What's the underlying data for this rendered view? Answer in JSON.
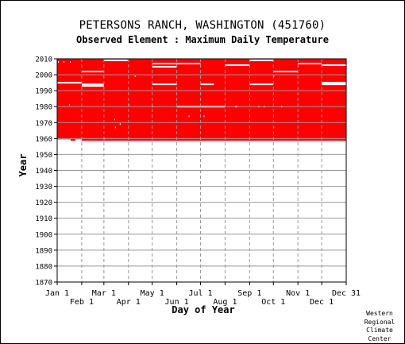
{
  "chart_data": {
    "type": "scatter",
    "title": "PETERSONS RANCH, WASHINGTON   (451760)",
    "subtitle": "Observed Element : Maximum Daily Temperature",
    "xlabel": "Day of Year",
    "ylabel": "Year",
    "xlim": [
      1,
      366
    ],
    "ylim": [
      1870,
      2010
    ],
    "grid": true,
    "y_ticks": [
      1870,
      1880,
      1890,
      1900,
      1910,
      1920,
      1930,
      1940,
      1950,
      1960,
      1970,
      1980,
      1990,
      2000,
      2010
    ],
    "x_ticks_upper": [
      {
        "label": "Jan 1",
        "day": 1
      },
      {
        "label": "Mar 1",
        "day": 60
      },
      {
        "label": "May 1",
        "day": 121
      },
      {
        "label": "Jul 1",
        "day": 182
      },
      {
        "label": "Sep 1",
        "day": 244
      },
      {
        "label": "Nov 1",
        "day": 305
      },
      {
        "label": "Dec 31",
        "day": 366
      }
    ],
    "x_ticks_lower": [
      {
        "label": "Feb 1",
        "day": 32
      },
      {
        "label": "Apr 1",
        "day": 91
      },
      {
        "label": "Jun 1",
        "day": 152
      },
      {
        "label": "Aug 1",
        "day": 213
      },
      {
        "label": "Oct 1",
        "day": 274
      },
      {
        "label": "Dec 1",
        "day": 335
      }
    ],
    "series": [
      {
        "color": "#ff0000",
        "coverage": {
          "start_year": 1958.5,
          "end_year": 2010,
          "start_day": 1,
          "end_day": 366,
          "first_year_start_day": 18
        },
        "missing_segments": [
          {
            "year": 2009,
            "day_start": 60,
            "day_end": 90
          },
          {
            "year": 2009,
            "day_start": 244,
            "day_end": 274
          },
          {
            "year": 2008,
            "day_start": 2,
            "day_end": 3
          },
          {
            "year": 2008,
            "day_start": 9,
            "day_end": 10
          },
          {
            "year": 2008,
            "day_start": 17,
            "day_end": 18
          },
          {
            "year": 2007,
            "day_start": 121,
            "day_end": 182
          },
          {
            "year": 2007,
            "day_start": 305,
            "day_end": 335
          },
          {
            "year": 2006,
            "day_start": 213,
            "day_end": 244
          },
          {
            "year": 2006,
            "day_start": 335,
            "day_end": 366
          },
          {
            "year": 2005,
            "day_start": 121,
            "day_end": 152
          },
          {
            "year": 2002,
            "day_start": 32,
            "day_end": 60
          },
          {
            "year": 2002,
            "day_start": 274,
            "day_end": 305
          },
          {
            "year": 1999,
            "day_start": 99,
            "day_end": 100
          },
          {
            "year": 1999,
            "day_start": 274,
            "day_end": 275
          },
          {
            "year": 1995,
            "day_start": 1,
            "day_end": 32
          },
          {
            "year": 1995,
            "day_start": 335,
            "day_end": 366
          },
          {
            "year": 1994,
            "day_start": 32,
            "day_end": 60
          },
          {
            "year": 1994,
            "day_start": 121,
            "day_end": 152
          },
          {
            "year": 1994,
            "day_start": 182,
            "day_end": 199
          },
          {
            "year": 1994,
            "day_start": 244,
            "day_end": 274
          },
          {
            "year": 1994,
            "day_start": 335,
            "day_end": 366
          },
          {
            "year": 1993,
            "day_start": 32,
            "day_end": 60
          },
          {
            "year": 1981,
            "day_start": 91,
            "day_end": 92
          },
          {
            "year": 1981,
            "day_start": 16,
            "day_end": 17
          },
          {
            "year": 1980,
            "day_start": 121,
            "day_end": 122
          },
          {
            "year": 1980,
            "day_start": 152,
            "day_end": 213
          },
          {
            "year": 1980,
            "day_start": 226,
            "day_end": 228
          },
          {
            "year": 1980,
            "day_start": 255,
            "day_end": 256
          },
          {
            "year": 1980,
            "day_start": 262,
            "day_end": 263
          },
          {
            "year": 1980,
            "day_start": 284,
            "day_end": 285
          },
          {
            "year": 1974,
            "day_start": 167,
            "day_end": 168
          },
          {
            "year": 1974,
            "day_start": 186,
            "day_end": 187
          },
          {
            "year": 1972,
            "day_start": 73,
            "day_end": 74
          },
          {
            "year": 1969,
            "day_start": 80,
            "day_end": 81
          },
          {
            "year": 1967,
            "day_start": 74,
            "day_end": 75
          },
          {
            "year": 1967,
            "day_start": 274,
            "day_end": 275
          },
          {
            "year": 1960,
            "day_start": 60,
            "day_end": 61
          },
          {
            "year": 1959,
            "day_start": 1,
            "day_end": 18
          },
          {
            "year": 1959,
            "day_start": 24,
            "day_end": 32
          }
        ]
      }
    ]
  },
  "credit": {
    "line1": "Western",
    "line2": "Regional",
    "line3": "Climate",
    "line4": "Center"
  }
}
